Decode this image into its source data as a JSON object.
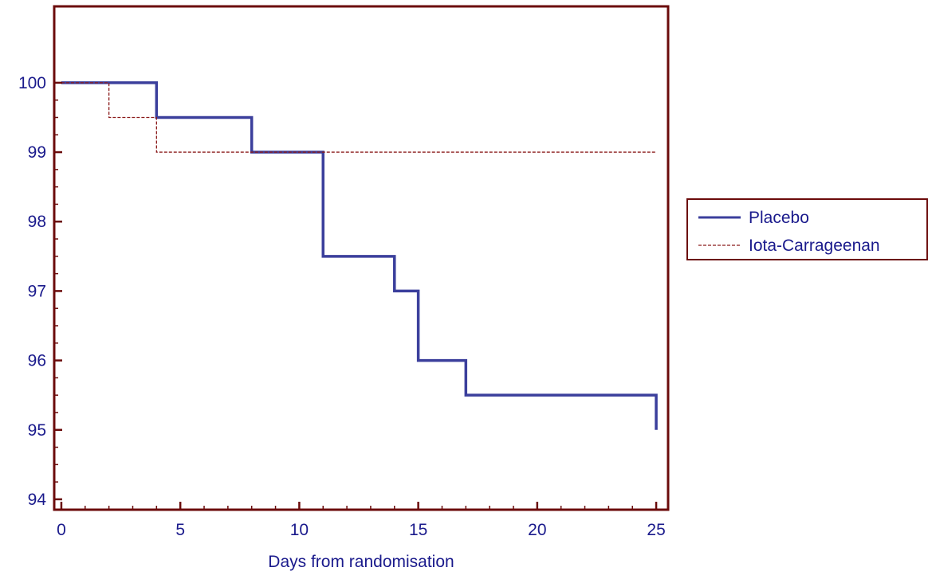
{
  "chart_data": {
    "type": "line",
    "title": "",
    "xlabel": "Days from randomisation",
    "ylabel": "",
    "xlim": [
      -0.3,
      25.5
    ],
    "ylim": [
      93.85,
      101.1
    ],
    "x_ticks": [
      0,
      5,
      10,
      15,
      20,
      25
    ],
    "x_tick_labels": [
      "0",
      "5",
      "10",
      "15",
      "20",
      "25"
    ],
    "y_ticks": [
      94,
      95,
      96,
      97,
      98,
      99,
      100
    ],
    "y_tick_labels": [
      "94",
      "95",
      "96",
      "97",
      "98",
      "99",
      "100"
    ],
    "grid": false,
    "legend_position": "right",
    "series": [
      {
        "name": "Placebo",
        "style": "step",
        "color": "#3b3f9c",
        "dash": "solid",
        "x": [
          0,
          4,
          8,
          11,
          14,
          15,
          17,
          25,
          25
        ],
        "y": [
          100,
          99.5,
          99.0,
          97.5,
          97.0,
          96.0,
          95.5,
          95.5,
          95.0
        ]
      },
      {
        "name": "Iota-Carrageenan",
        "style": "step",
        "color": "#8b1a1a",
        "dash": "dashed",
        "x": [
          0,
          2,
          4,
          25
        ],
        "y": [
          100,
          99.5,
          99.0,
          99.0
        ]
      }
    ],
    "frame_color": "#6b0b0b",
    "tick_label_color": "#1a1a8c"
  }
}
